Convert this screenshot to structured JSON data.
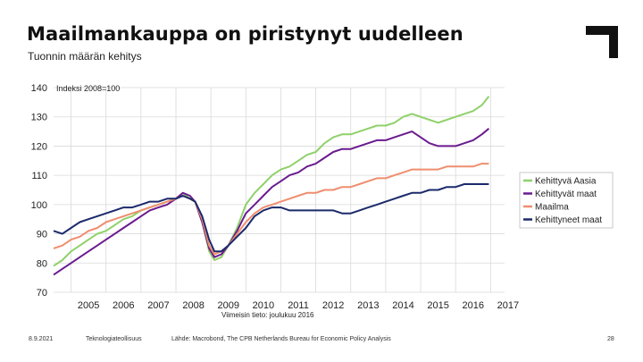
{
  "slide": {
    "title": "Maailmankauppa on piristynyt uudelleen",
    "subtitle": "Tuonnin määrän kehitys",
    "footer": {
      "date": "8.9.2021",
      "org": "Teknologiateollisuus",
      "source": "Lähde: Macrobond, The CPB Netherlands Bureau for Economic Policy Analysis",
      "page": "28"
    }
  },
  "chart_data": {
    "type": "line",
    "annotation_index": "Indeksi 2008=100",
    "note": "Viimeisin tieto: joulukuu 2016",
    "x_ticks": [
      "2005",
      "2006",
      "2007",
      "2008",
      "2009",
      "2010",
      "2011",
      "2012",
      "2013",
      "2014",
      "2015",
      "2016",
      "2017"
    ],
    "xlim": [
      2004.5,
      2017.4
    ],
    "ylim": [
      70,
      140
    ],
    "y_ticks": [
      70,
      80,
      90,
      100,
      110,
      120,
      130,
      140
    ],
    "grid": true,
    "legend_position": "right",
    "series": [
      {
        "name": "Kehittyvä Aasia",
        "color": "#8fd16a",
        "points": [
          [
            2004.5,
            79
          ],
          [
            2004.75,
            81
          ],
          [
            2005.0,
            84
          ],
          [
            2005.25,
            86
          ],
          [
            2005.5,
            88
          ],
          [
            2005.75,
            90
          ],
          [
            2006.0,
            91
          ],
          [
            2006.25,
            93
          ],
          [
            2006.5,
            95
          ],
          [
            2006.75,
            96
          ],
          [
            2007.0,
            98
          ],
          [
            2007.25,
            99
          ],
          [
            2007.5,
            100
          ],
          [
            2007.75,
            101
          ],
          [
            2008.0,
            102
          ],
          [
            2008.2,
            104
          ],
          [
            2008.4,
            102
          ],
          [
            2008.55,
            101
          ],
          [
            2008.75,
            94
          ],
          [
            2008.95,
            84
          ],
          [
            2009.1,
            81
          ],
          [
            2009.3,
            82
          ],
          [
            2009.5,
            86
          ],
          [
            2009.75,
            92
          ],
          [
            2010.0,
            100
          ],
          [
            2010.25,
            104
          ],
          [
            2010.5,
            107
          ],
          [
            2010.75,
            110
          ],
          [
            2011.0,
            112
          ],
          [
            2011.25,
            113
          ],
          [
            2011.5,
            115
          ],
          [
            2011.75,
            117
          ],
          [
            2012.0,
            118
          ],
          [
            2012.25,
            121
          ],
          [
            2012.5,
            123
          ],
          [
            2012.75,
            124
          ],
          [
            2013.0,
            124
          ],
          [
            2013.25,
            125
          ],
          [
            2013.5,
            126
          ],
          [
            2013.75,
            127
          ],
          [
            2014.0,
            127
          ],
          [
            2014.25,
            128
          ],
          [
            2014.5,
            130
          ],
          [
            2014.75,
            131
          ],
          [
            2015.0,
            130
          ],
          [
            2015.25,
            129
          ],
          [
            2015.5,
            128
          ],
          [
            2015.75,
            129
          ],
          [
            2016.0,
            130
          ],
          [
            2016.25,
            131
          ],
          [
            2016.5,
            132
          ],
          [
            2016.75,
            134
          ],
          [
            2016.95,
            137
          ]
        ]
      },
      {
        "name": "Kehittyvät maat",
        "color": "#6a1b8f",
        "points": [
          [
            2004.5,
            76
          ],
          [
            2004.75,
            78
          ],
          [
            2005.0,
            80
          ],
          [
            2005.25,
            82
          ],
          [
            2005.5,
            84
          ],
          [
            2005.75,
            86
          ],
          [
            2006.0,
            88
          ],
          [
            2006.25,
            90
          ],
          [
            2006.5,
            92
          ],
          [
            2006.75,
            94
          ],
          [
            2007.0,
            96
          ],
          [
            2007.25,
            98
          ],
          [
            2007.5,
            99
          ],
          [
            2007.75,
            100
          ],
          [
            2008.0,
            102
          ],
          [
            2008.2,
            104
          ],
          [
            2008.4,
            103
          ],
          [
            2008.55,
            101
          ],
          [
            2008.75,
            94
          ],
          [
            2008.95,
            85
          ],
          [
            2009.1,
            82
          ],
          [
            2009.3,
            83
          ],
          [
            2009.5,
            86
          ],
          [
            2009.75,
            91
          ],
          [
            2010.0,
            97
          ],
          [
            2010.25,
            100
          ],
          [
            2010.5,
            103
          ],
          [
            2010.75,
            106
          ],
          [
            2011.0,
            108
          ],
          [
            2011.25,
            110
          ],
          [
            2011.5,
            111
          ],
          [
            2011.75,
            113
          ],
          [
            2012.0,
            114
          ],
          [
            2012.25,
            116
          ],
          [
            2012.5,
            118
          ],
          [
            2012.75,
            119
          ],
          [
            2013.0,
            119
          ],
          [
            2013.25,
            120
          ],
          [
            2013.5,
            121
          ],
          [
            2013.75,
            122
          ],
          [
            2014.0,
            122
          ],
          [
            2014.25,
            123
          ],
          [
            2014.5,
            124
          ],
          [
            2014.75,
            125
          ],
          [
            2015.0,
            123
          ],
          [
            2015.25,
            121
          ],
          [
            2015.5,
            120
          ],
          [
            2015.75,
            120
          ],
          [
            2016.0,
            120
          ],
          [
            2016.25,
            121
          ],
          [
            2016.5,
            122
          ],
          [
            2016.75,
            124
          ],
          [
            2016.95,
            126
          ]
        ]
      },
      {
        "name": "Maailma",
        "color": "#ef8e6e",
        "points": [
          [
            2004.5,
            85
          ],
          [
            2004.75,
            86
          ],
          [
            2005.0,
            88
          ],
          [
            2005.25,
            89
          ],
          [
            2005.5,
            91
          ],
          [
            2005.75,
            92
          ],
          [
            2006.0,
            94
          ],
          [
            2006.25,
            95
          ],
          [
            2006.5,
            96
          ],
          [
            2006.75,
            97
          ],
          [
            2007.0,
            98
          ],
          [
            2007.25,
            99
          ],
          [
            2007.5,
            100
          ],
          [
            2007.75,
            101
          ],
          [
            2008.0,
            102
          ],
          [
            2008.2,
            103
          ],
          [
            2008.4,
            102
          ],
          [
            2008.55,
            101
          ],
          [
            2008.75,
            95
          ],
          [
            2008.95,
            86
          ],
          [
            2009.1,
            83
          ],
          [
            2009.3,
            84
          ],
          [
            2009.5,
            86
          ],
          [
            2009.75,
            90
          ],
          [
            2010.0,
            94
          ],
          [
            2010.25,
            97
          ],
          [
            2010.5,
            99
          ],
          [
            2010.75,
            100
          ],
          [
            2011.0,
            101
          ],
          [
            2011.25,
            102
          ],
          [
            2011.5,
            103
          ],
          [
            2011.75,
            104
          ],
          [
            2012.0,
            104
          ],
          [
            2012.25,
            105
          ],
          [
            2012.5,
            105
          ],
          [
            2012.75,
            106
          ],
          [
            2013.0,
            106
          ],
          [
            2013.25,
            107
          ],
          [
            2013.5,
            108
          ],
          [
            2013.75,
            109
          ],
          [
            2014.0,
            109
          ],
          [
            2014.25,
            110
          ],
          [
            2014.5,
            111
          ],
          [
            2014.75,
            112
          ],
          [
            2015.0,
            112
          ],
          [
            2015.25,
            112
          ],
          [
            2015.5,
            112
          ],
          [
            2015.75,
            113
          ],
          [
            2016.0,
            113
          ],
          [
            2016.25,
            113
          ],
          [
            2016.5,
            113
          ],
          [
            2016.75,
            114
          ],
          [
            2016.95,
            114
          ]
        ]
      },
      {
        "name": "Kehittyneet maat",
        "color": "#1b2a6b",
        "points": [
          [
            2004.5,
            91
          ],
          [
            2004.75,
            90
          ],
          [
            2005.0,
            92
          ],
          [
            2005.25,
            94
          ],
          [
            2005.5,
            95
          ],
          [
            2005.75,
            96
          ],
          [
            2006.0,
            97
          ],
          [
            2006.25,
            98
          ],
          [
            2006.5,
            99
          ],
          [
            2006.75,
            99
          ],
          [
            2007.0,
            100
          ],
          [
            2007.25,
            101
          ],
          [
            2007.5,
            101
          ],
          [
            2007.75,
            102
          ],
          [
            2008.0,
            102
          ],
          [
            2008.2,
            103
          ],
          [
            2008.4,
            102
          ],
          [
            2008.55,
            101
          ],
          [
            2008.75,
            96
          ],
          [
            2008.95,
            88
          ],
          [
            2009.1,
            84
          ],
          [
            2009.3,
            84
          ],
          [
            2009.5,
            86
          ],
          [
            2009.75,
            89
          ],
          [
            2010.0,
            92
          ],
          [
            2010.25,
            96
          ],
          [
            2010.5,
            98
          ],
          [
            2010.75,
            99
          ],
          [
            2011.0,
            99
          ],
          [
            2011.25,
            98
          ],
          [
            2011.5,
            98
          ],
          [
            2011.75,
            98
          ],
          [
            2012.0,
            98
          ],
          [
            2012.25,
            98
          ],
          [
            2012.5,
            98
          ],
          [
            2012.75,
            97
          ],
          [
            2013.0,
            97
          ],
          [
            2013.25,
            98
          ],
          [
            2013.5,
            99
          ],
          [
            2013.75,
            100
          ],
          [
            2014.0,
            101
          ],
          [
            2014.25,
            102
          ],
          [
            2014.5,
            103
          ],
          [
            2014.75,
            104
          ],
          [
            2015.0,
            104
          ],
          [
            2015.25,
            105
          ],
          [
            2015.5,
            105
          ],
          [
            2015.75,
            106
          ],
          [
            2016.0,
            106
          ],
          [
            2016.25,
            107
          ],
          [
            2016.5,
            107
          ],
          [
            2016.75,
            107
          ],
          [
            2016.95,
            107
          ]
        ]
      }
    ]
  }
}
